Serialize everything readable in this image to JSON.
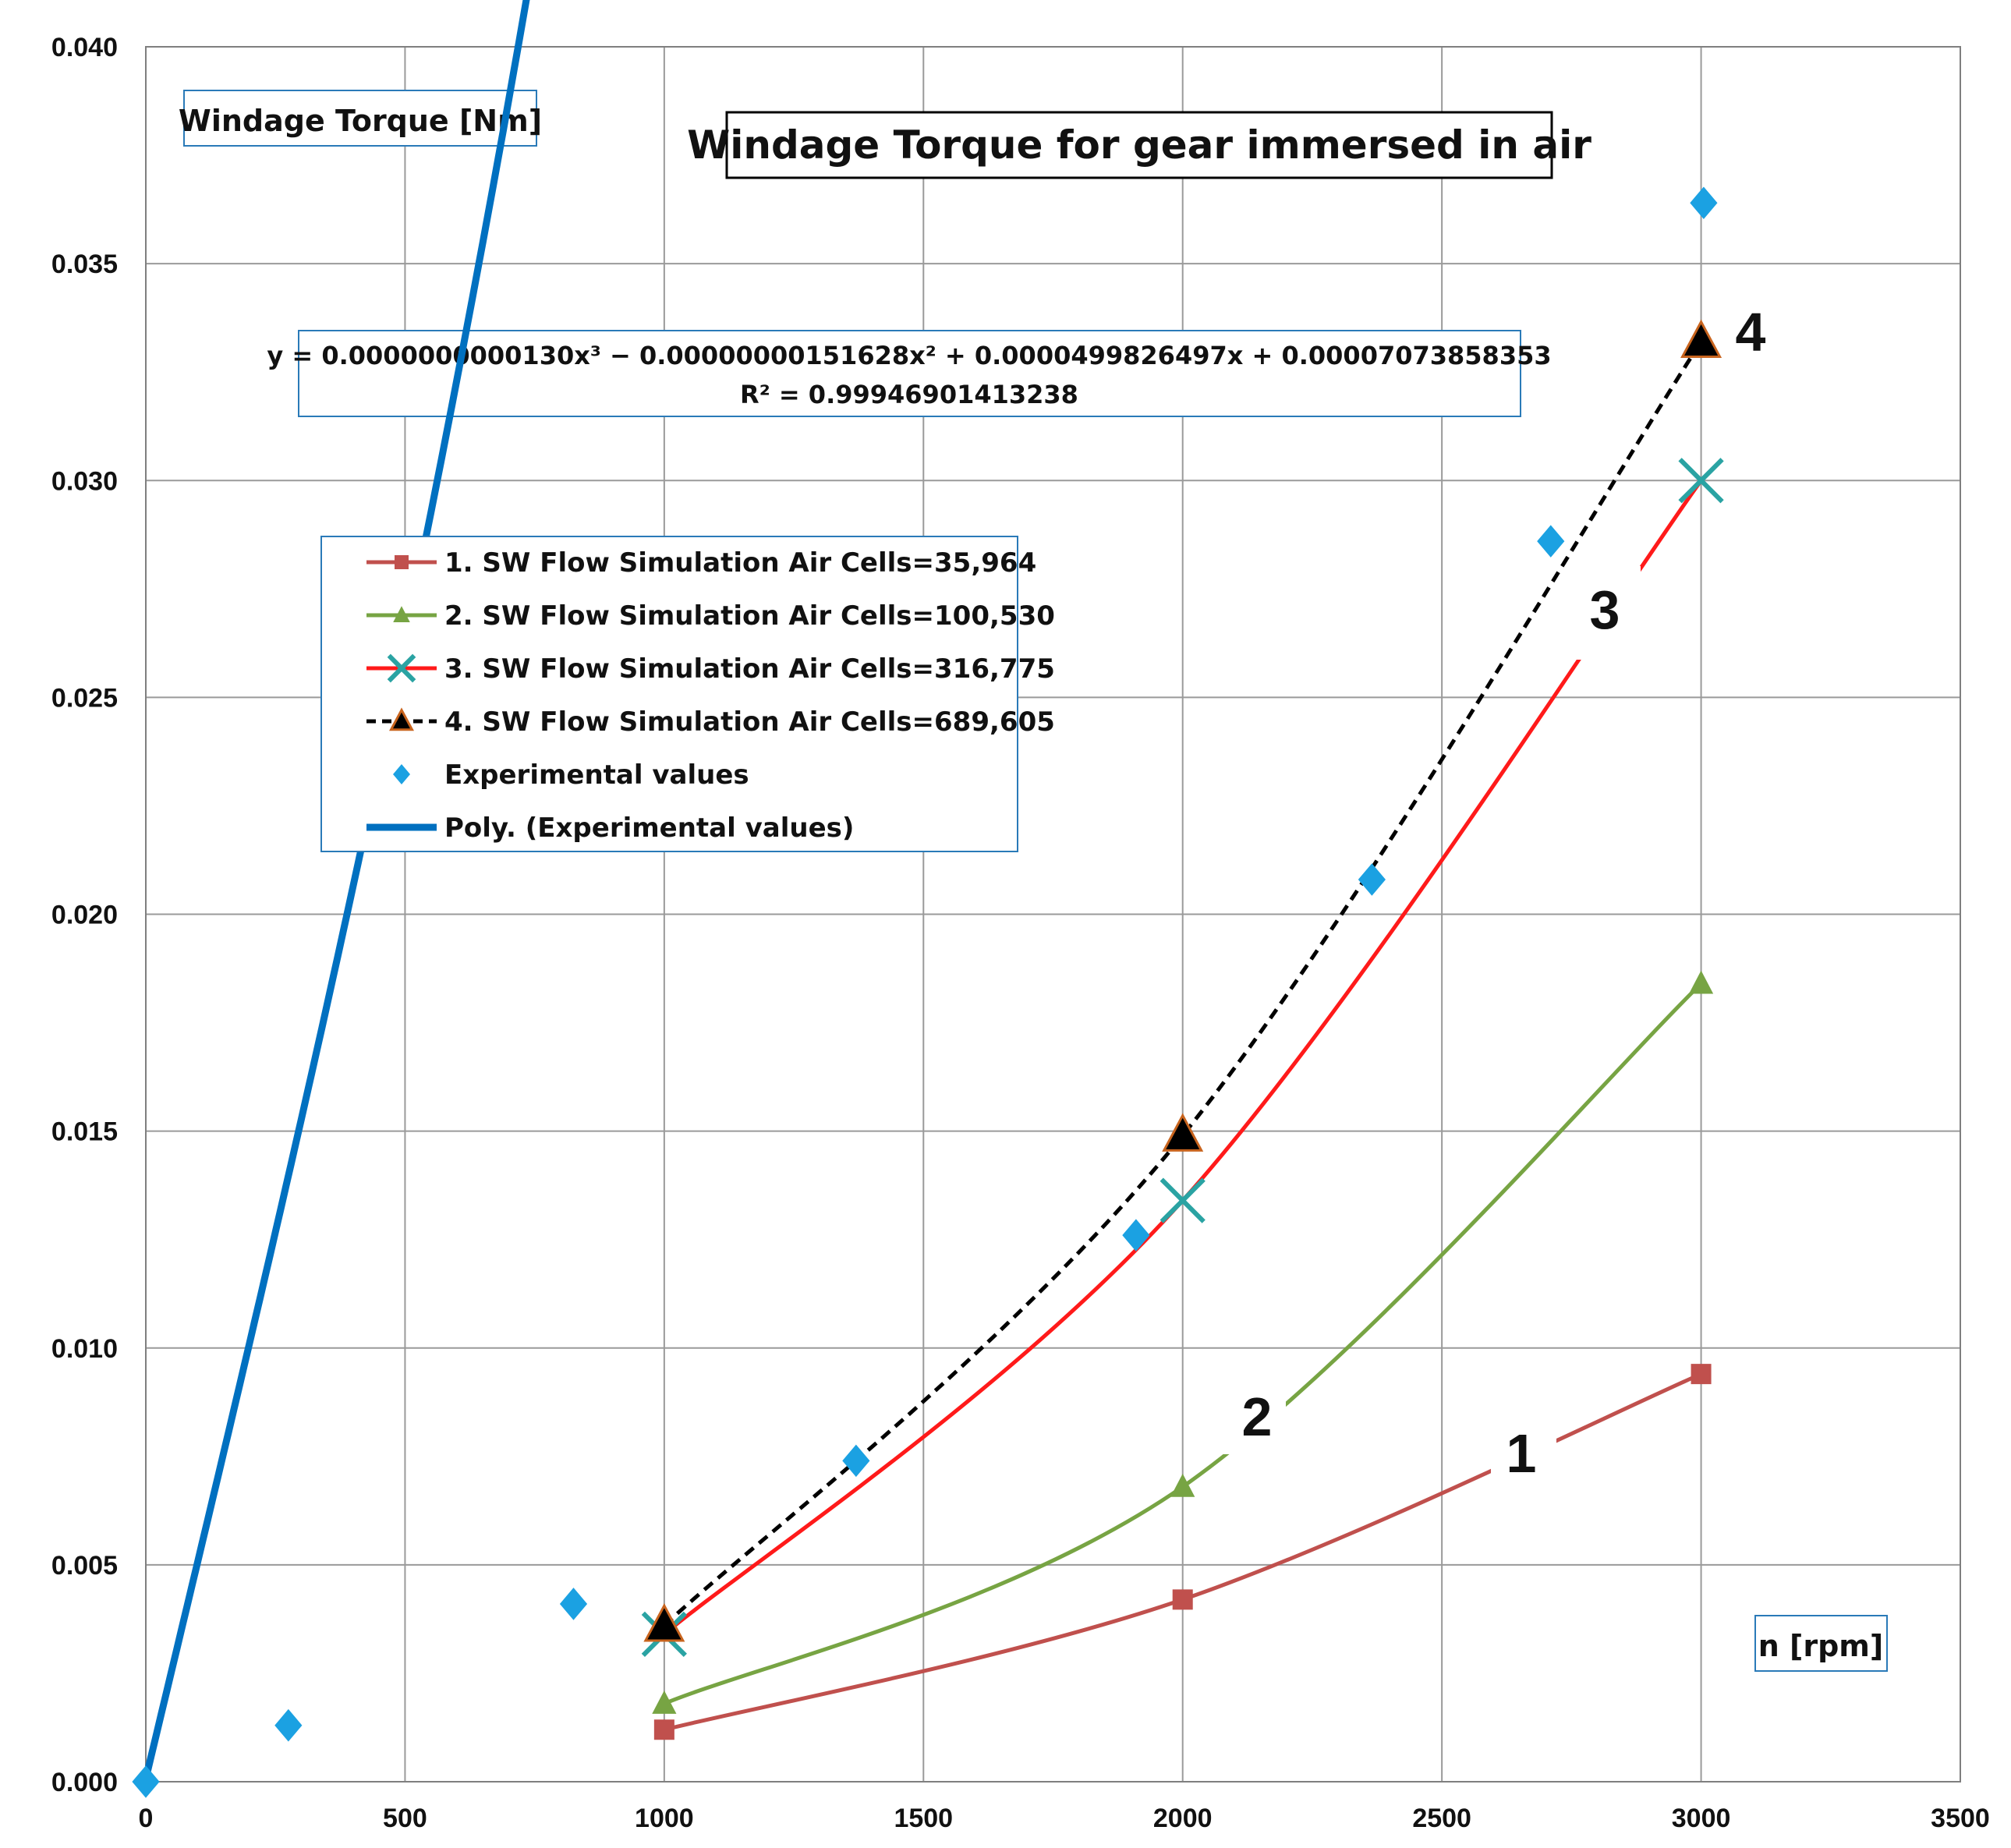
{
  "chart_data": {
    "type": "line",
    "title": "Windage Torque for gear immersed in air",
    "ylabel": "Windage Torque [Nm]",
    "xlabel": "n [rpm]",
    "xlim": [
      0,
      3500
    ],
    "ylim": [
      0,
      0.04
    ],
    "x_ticks": [
      "0",
      "500",
      "1000",
      "1500",
      "2000",
      "2500",
      "3000",
      "3500"
    ],
    "y_ticks": [
      "0.000",
      "0.005",
      "0.010",
      "0.015",
      "0.020",
      "0.025",
      "0.030",
      "0.035",
      "0.040"
    ],
    "grid": true,
    "equation": {
      "line1": "y = 0.0000000000130x³ − 0.00000000151628x² + 0.0000499826497x + 0.00007073858353",
      "line2": "R² = 0.99946901413238"
    },
    "curve_numbers": [
      "1",
      "2",
      "3",
      "4"
    ],
    "series": [
      {
        "name": "1. SW Flow Simulation Air Cells=35,964",
        "color": "#c0504d",
        "marker": "square",
        "style": "solid",
        "x": [
          1000,
          2000,
          3000
        ],
        "values": [
          0.0012,
          0.0042,
          0.0094
        ]
      },
      {
        "name": "2. SW Flow Simulation Air Cells=100,530",
        "color": "#77a443",
        "marker": "triangle",
        "style": "solid",
        "x": [
          1000,
          2000,
          3000
        ],
        "values": [
          0.0018,
          0.0068,
          0.0184
        ]
      },
      {
        "name": "3. SW Flow Simulation Air Cells=316,775",
        "color": "#ff1a1a",
        "marker": "x",
        "style": "solid",
        "x": [
          1000,
          2000,
          3000
        ],
        "values": [
          0.0034,
          0.0134,
          0.03
        ]
      },
      {
        "name": "4. SW Flow Simulation Air Cells=689,605",
        "color": "#000000",
        "marker": "triangle-black",
        "style": "dashed",
        "x": [
          1000,
          2000,
          3000
        ],
        "values": [
          0.0036,
          0.0149,
          0.0332
        ]
      },
      {
        "name": "Experimental values",
        "color": "#1ba1e2",
        "marker": "diamond",
        "style": "none",
        "x": [
          0,
          275,
          825,
          1370,
          1910,
          2365,
          2710,
          3005
        ],
        "values": [
          0.0,
          0.0013,
          0.0041,
          0.0074,
          0.0126,
          0.0208,
          0.0286,
          0.0364
        ]
      },
      {
        "name": "Poly. (Experimental values)",
        "color": "#0070c0",
        "marker": "none",
        "style": "thick",
        "x": [],
        "values": []
      }
    ]
  }
}
